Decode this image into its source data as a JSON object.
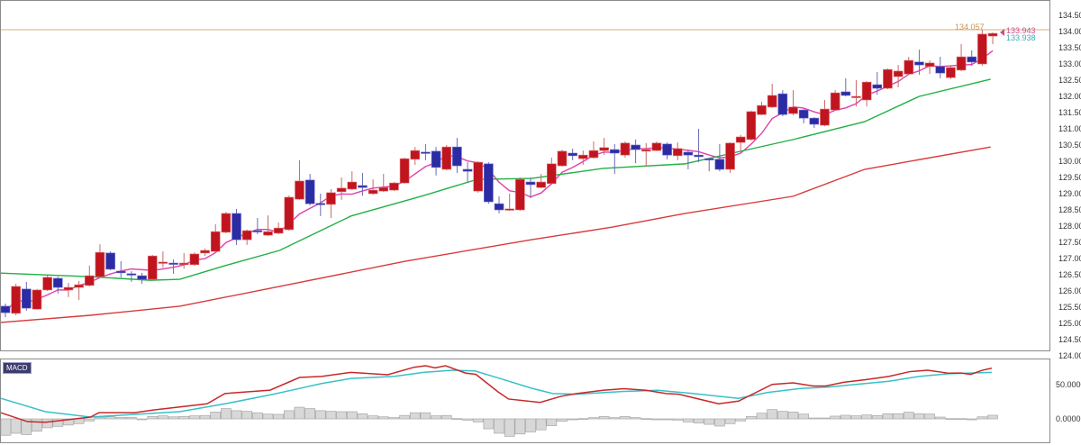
{
  "chart_data": [
    {
      "type": "candlestick",
      "panel": "price",
      "y_axis": {
        "ticks": [
          "134.500",
          "134.000",
          "133.500",
          "133.000",
          "132.500",
          "132.000",
          "131.500",
          "131.000",
          "130.500",
          "130.000",
          "129.500",
          "129.000",
          "128.500",
          "128.000",
          "127.500",
          "127.000",
          "126.500",
          "126.000",
          "125.500",
          "125.000",
          "124.500",
          "124.000"
        ],
        "ylim": [
          124.0,
          134.55
        ],
        "position": "right"
      },
      "grid": false,
      "colors": {
        "up": "#c0141e",
        "down": "#2b2ba3",
        "up_wick": "#c86a6a",
        "down_wick": "#6a6ab8"
      },
      "candles_ohlc": [
        [
          125.53,
          125.61,
          125.19,
          125.33
        ],
        [
          125.31,
          126.22,
          125.25,
          126.14
        ],
        [
          126.06,
          126.28,
          125.39,
          125.47
        ],
        [
          125.44,
          126.06,
          125.42,
          126.03
        ],
        [
          126.03,
          126.5,
          126.0,
          126.42
        ],
        [
          126.39,
          126.44,
          125.92,
          126.11
        ],
        [
          126.03,
          126.25,
          125.81,
          126.11
        ],
        [
          126.11,
          126.31,
          125.72,
          126.19
        ],
        [
          126.17,
          126.78,
          126.14,
          126.47
        ],
        [
          126.44,
          127.44,
          126.42,
          127.19
        ],
        [
          127.17,
          127.22,
          126.64,
          126.67
        ],
        [
          126.61,
          126.92,
          126.42,
          126.56
        ],
        [
          126.53,
          126.61,
          126.28,
          126.5
        ],
        [
          126.47,
          126.56,
          126.22,
          126.36
        ],
        [
          126.36,
          127.11,
          126.33,
          127.08
        ],
        [
          126.86,
          127.22,
          126.72,
          126.89
        ],
        [
          126.86,
          126.97,
          126.53,
          126.83
        ],
        [
          126.81,
          127.17,
          126.69,
          126.86
        ],
        [
          126.81,
          127.19,
          126.78,
          127.14
        ],
        [
          127.17,
          127.31,
          127.08,
          127.25
        ],
        [
          127.22,
          128.06,
          127.19,
          127.83
        ],
        [
          127.81,
          128.44,
          127.78,
          128.39
        ],
        [
          128.39,
          128.53,
          127.42,
          127.58
        ],
        [
          127.58,
          127.89,
          127.42,
          127.86
        ],
        [
          127.86,
          128.25,
          127.75,
          127.83
        ],
        [
          127.72,
          128.33,
          127.69,
          127.83
        ],
        [
          127.78,
          128.11,
          127.75,
          127.94
        ],
        [
          127.89,
          128.94,
          127.86,
          128.89
        ],
        [
          128.83,
          130.03,
          128.81,
          129.39
        ],
        [
          129.42,
          129.61,
          128.64,
          128.69
        ],
        [
          128.7,
          129.0,
          128.31,
          128.67
        ],
        [
          128.67,
          129.14,
          128.25,
          129.03
        ],
        [
          129.06,
          129.5,
          128.81,
          129.17
        ],
        [
          129.14,
          129.69,
          129.11,
          129.36
        ],
        [
          129.25,
          129.64,
          128.94,
          129.19
        ],
        [
          129.0,
          129.44,
          128.97,
          129.11
        ],
        [
          129.08,
          129.61,
          129.05,
          129.19
        ],
        [
          129.11,
          129.36,
          129.08,
          129.33
        ],
        [
          129.33,
          130.11,
          129.31,
          130.08
        ],
        [
          130.06,
          130.44,
          129.89,
          130.33
        ],
        [
          130.28,
          130.53,
          130.03,
          130.25
        ],
        [
          130.31,
          130.44,
          129.56,
          129.81
        ],
        [
          129.75,
          130.5,
          129.72,
          130.44
        ],
        [
          130.44,
          130.72,
          129.64,
          129.86
        ],
        [
          129.75,
          129.97,
          129.36,
          129.69
        ],
        [
          129.08,
          130.0,
          129.03,
          129.97
        ],
        [
          129.92,
          129.97,
          128.69,
          128.75
        ],
        [
          128.69,
          128.92,
          128.39,
          128.5
        ],
        [
          128.5,
          129.0,
          128.47,
          128.53
        ],
        [
          128.5,
          129.5,
          128.47,
          129.44
        ],
        [
          129.36,
          129.5,
          128.86,
          129.28
        ],
        [
          129.19,
          129.61,
          129.17,
          129.36
        ],
        [
          129.31,
          130.11,
          129.28,
          129.92
        ],
        [
          129.86,
          130.36,
          129.83,
          130.31
        ],
        [
          130.25,
          130.39,
          130.03,
          130.17
        ],
        [
          130.08,
          130.33,
          129.89,
          130.19
        ],
        [
          130.11,
          130.61,
          130.08,
          130.33
        ],
        [
          130.33,
          130.72,
          130.19,
          130.42
        ],
        [
          130.36,
          130.53,
          129.61,
          130.25
        ],
        [
          130.19,
          130.61,
          130.11,
          130.56
        ],
        [
          130.5,
          130.67,
          129.94,
          130.36
        ],
        [
          130.31,
          130.56,
          129.83,
          130.36
        ],
        [
          130.33,
          130.61,
          130.31,
          130.56
        ],
        [
          130.53,
          130.58,
          130.06,
          130.19
        ],
        [
          130.17,
          130.58,
          130.03,
          130.39
        ],
        [
          130.28,
          130.36,
          129.75,
          130.19
        ],
        [
          130.19,
          131.0,
          129.97,
          130.14
        ],
        [
          130.08,
          130.1,
          129.69,
          130.05
        ],
        [
          130.06,
          130.53,
          129.69,
          129.75
        ],
        [
          129.75,
          130.58,
          129.64,
          130.56
        ],
        [
          130.58,
          130.81,
          130.28,
          130.75
        ],
        [
          130.67,
          131.56,
          130.64,
          131.53
        ],
        [
          131.44,
          131.83,
          131.42,
          131.72
        ],
        [
          131.67,
          132.39,
          131.64,
          132.03
        ],
        [
          132.08,
          132.19,
          131.39,
          131.44
        ],
        [
          131.47,
          132.19,
          131.42,
          131.67
        ],
        [
          131.58,
          131.61,
          131.17,
          131.33
        ],
        [
          131.33,
          131.36,
          131.03,
          131.14
        ],
        [
          131.11,
          131.89,
          131.08,
          131.61
        ],
        [
          131.58,
          132.19,
          131.56,
          132.11
        ],
        [
          132.14,
          132.56,
          132.0,
          132.03
        ],
        [
          131.97,
          132.5,
          131.69,
          132.0
        ],
        [
          131.89,
          132.47,
          131.69,
          132.44
        ],
        [
          132.36,
          132.75,
          132.05,
          132.25
        ],
        [
          132.25,
          132.86,
          132.22,
          132.83
        ],
        [
          132.61,
          132.97,
          132.28,
          132.78
        ],
        [
          132.69,
          133.22,
          132.67,
          133.11
        ],
        [
          133.06,
          133.44,
          132.67,
          132.97
        ],
        [
          132.92,
          133.11,
          132.69,
          133.03
        ],
        [
          132.92,
          133.22,
          132.56,
          132.72
        ],
        [
          132.58,
          132.94,
          132.53,
          132.89
        ],
        [
          132.81,
          133.61,
          132.78,
          133.22
        ],
        [
          133.22,
          133.42,
          132.94,
          133.06
        ],
        [
          133.0,
          134.06,
          132.94,
          133.92
        ],
        [
          133.86,
          133.97,
          133.61,
          133.943
        ]
      ],
      "moving_averages": [
        {
          "color": "#e040a8",
          "computed": "sma",
          "period": 5
        },
        {
          "color": "#22b045",
          "points": [
            [
              -0.5,
              126.55
            ],
            [
              8.1,
              126.44
            ],
            [
              13.8,
              126.33
            ],
            [
              16.6,
              126.36
            ],
            [
              20.9,
              126.78
            ],
            [
              26.1,
              127.25
            ],
            [
              32.9,
              128.31
            ],
            [
              39.8,
              128.94
            ],
            [
              44.9,
              129.44
            ],
            [
              50.1,
              129.47
            ],
            [
              56.9,
              129.78
            ],
            [
              64.7,
              129.92
            ],
            [
              69.2,
              130.25
            ],
            [
              75.0,
              130.67
            ],
            [
              81.8,
              131.22
            ],
            [
              87.0,
              132.0
            ],
            [
              93.8,
              132.53
            ]
          ]
        },
        {
          "color": "#d83a3a",
          "points": [
            [
              -0.5,
              125.03
            ],
            [
              8.1,
              125.25
            ],
            [
              16.6,
              125.53
            ],
            [
              25.2,
              126.08
            ],
            [
              38.1,
              126.92
            ],
            [
              50.1,
              127.58
            ],
            [
              57.8,
              127.97
            ],
            [
              64.7,
              128.39
            ],
            [
              75.0,
              128.92
            ],
            [
              81.8,
              129.75
            ],
            [
              93.8,
              130.44
            ]
          ]
        }
      ],
      "horizontal_line": {
        "value": 134.057,
        "label": "134.057",
        "color": "#d8b078"
      },
      "price_labels": [
        {
          "text": "133.943",
          "color": "#c8508c"
        },
        {
          "text": "133.938",
          "color": "#40a8b8"
        }
      ]
    },
    {
      "type": "macd",
      "panel": "indicator",
      "title": "MACD",
      "y_axis": {
        "ticks": [
          "50.0000",
          "0.0000"
        ],
        "position": "right"
      },
      "macd_line": {
        "color": "#c82828",
        "points": [
          [
            -0.5,
            9
          ],
          [
            2.1,
            -4
          ],
          [
            3.8,
            -5
          ],
          [
            8.1,
            2.6
          ],
          [
            8.9,
            9
          ],
          [
            12.3,
            9
          ],
          [
            14.1,
            13
          ],
          [
            19.2,
            22
          ],
          [
            20.9,
            37
          ],
          [
            25.2,
            42
          ],
          [
            28.0,
            60.5
          ],
          [
            30.1,
            62
          ],
          [
            32.9,
            68
          ],
          [
            36.4,
            64.5
          ],
          [
            38.9,
            75.4
          ],
          [
            40.0,
            77.6
          ],
          [
            40.9,
            74.5
          ],
          [
            41.9,
            77.6
          ],
          [
            43.8,
            67
          ],
          [
            44.8,
            65
          ],
          [
            46.9,
            39.5
          ],
          [
            47.9,
            29
          ],
          [
            50.9,
            24
          ],
          [
            52.9,
            33
          ],
          [
            54.4,
            37
          ],
          [
            56.9,
            41.7
          ],
          [
            58.9,
            44
          ],
          [
            61.0,
            41.7
          ],
          [
            62.9,
            37
          ],
          [
            64.1,
            36
          ],
          [
            67.9,
            22
          ],
          [
            69.8,
            26
          ],
          [
            73.0,
            50.4
          ],
          [
            75.0,
            52.6
          ],
          [
            76.9,
            48
          ],
          [
            78.1,
            48
          ],
          [
            79.8,
            53.5
          ],
          [
            81.8,
            57
          ],
          [
            84.1,
            62
          ],
          [
            86.1,
            69
          ],
          [
            87.8,
            71
          ],
          [
            89.8,
            66.7
          ],
          [
            91.0,
            67
          ],
          [
            91.9,
            65
          ],
          [
            93.0,
            71
          ],
          [
            93.9,
            74
          ]
        ]
      },
      "signal_line": {
        "color": "#38c0c8",
        "points": [
          [
            -0.5,
            30
          ],
          [
            3.8,
            10.5
          ],
          [
            8.1,
            2.6
          ],
          [
            12.3,
            6.6
          ],
          [
            16.6,
            10.5
          ],
          [
            20.9,
            22
          ],
          [
            25.2,
            35
          ],
          [
            27.2,
            41.7
          ],
          [
            30.1,
            51.7
          ],
          [
            32.9,
            59
          ],
          [
            37.0,
            62
          ],
          [
            39.8,
            68
          ],
          [
            42.6,
            71
          ],
          [
            44.7,
            70
          ],
          [
            47.3,
            58
          ],
          [
            50.1,
            44.7
          ],
          [
            52.1,
            37
          ],
          [
            54.4,
            36
          ],
          [
            58.7,
            40
          ],
          [
            62.1,
            41.7
          ],
          [
            65.5,
            37
          ],
          [
            69.8,
            30
          ],
          [
            72.6,
            38.6
          ],
          [
            75.6,
            44.3
          ],
          [
            78.4,
            46.5
          ],
          [
            84.1,
            55
          ],
          [
            87.0,
            62
          ],
          [
            89.8,
            66
          ],
          [
            93.9,
            68
          ]
        ]
      },
      "histogram": [
        -24,
        -21,
        -23,
        -18,
        -13,
        -11,
        -9,
        -7,
        -3,
        2,
        3,
        2,
        2,
        0,
        3.5,
        4.4,
        3,
        3.5,
        4.4,
        5,
        10,
        15,
        12,
        11,
        9,
        7,
        6.6,
        12,
        17,
        15,
        12,
        11,
        10.5,
        10.5,
        7.5,
        4.4,
        3,
        1.8,
        5,
        9,
        9,
        4.4,
        5,
        0.4,
        -1.8,
        -4.4,
        -14.5,
        -21,
        -25.5,
        -22,
        -19,
        -16,
        -10,
        -3.5,
        -0.4,
        0.4,
        1.8,
        3.5,
        1.8,
        3.5,
        1.8,
        0.4,
        0,
        -1.3,
        -1.8,
        -4.4,
        -6,
        -8,
        -10.5,
        -7,
        -3,
        3.5,
        8.3,
        13.6,
        11,
        10,
        7,
        1.3,
        1.3,
        4,
        5.3,
        4.4,
        5.7,
        4.8,
        7.5,
        7.5,
        9.7,
        7.5,
        7,
        2.6,
        0.4,
        0.4,
        -0.9,
        3,
        5.3
      ],
      "histogram_color": "#d8d8d8"
    }
  ]
}
